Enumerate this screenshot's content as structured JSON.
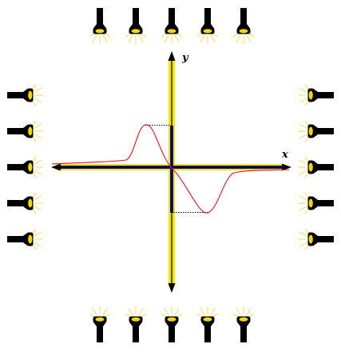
{
  "diagram": {
    "axis_labels": {
      "x": "x",
      "y": "y"
    },
    "colors": {
      "axis_glow": "#f5e60a",
      "axis_core": "#1616a8",
      "arrow": "#000000",
      "curve": "#e8141c",
      "guide": "#000000",
      "torch_body": "#000000",
      "torch_lens": "#f0d800",
      "rays": "#f2e27a"
    },
    "torches": {
      "top": {
        "count": 5,
        "facing": "down",
        "icon": "flashlight-icon"
      },
      "bottom": {
        "count": 5,
        "facing": "up",
        "icon": "flashlight-icon"
      },
      "left": {
        "count": 5,
        "facing": "right",
        "icon": "flashlight-icon"
      },
      "right": {
        "count": 5,
        "facing": "left",
        "icon": "flashlight-icon"
      }
    }
  }
}
